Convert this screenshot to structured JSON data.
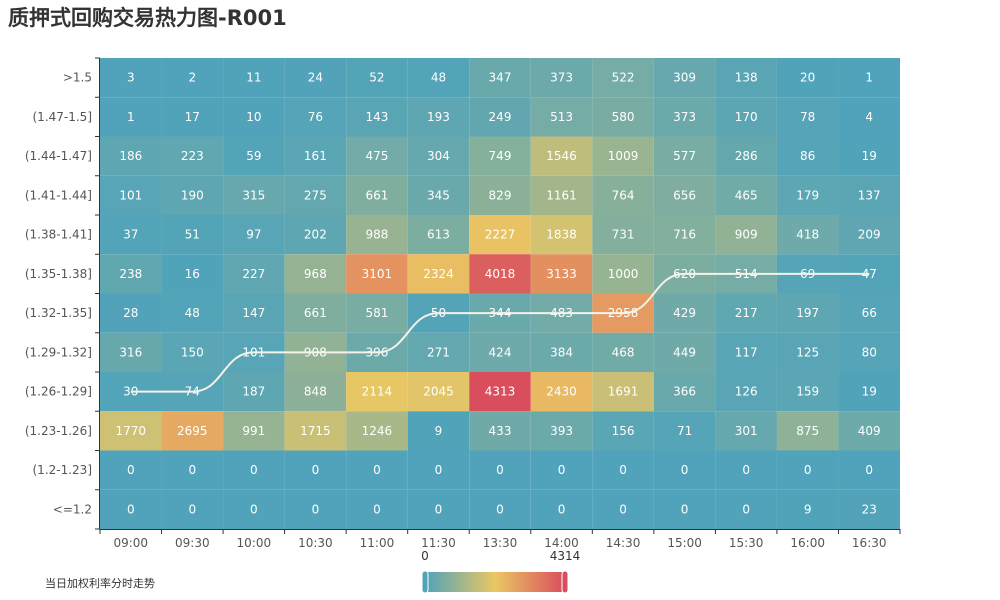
{
  "chart_data": {
    "type": "heatmap",
    "title": "质押式回购交易热力图-R001",
    "x_categories": [
      "09:00",
      "09:30",
      "10:00",
      "10:30",
      "11:00",
      "11:30",
      "13:30",
      "14:00",
      "14:30",
      "15:00",
      "15:30",
      "16:00",
      "16:30"
    ],
    "y_categories": [
      ">1.5",
      "(1.47-1.5]",
      "(1.44-1.47]",
      "(1.41-1.44]",
      "(1.38-1.41]",
      "(1.35-1.38]",
      "(1.32-1.35]",
      "(1.29-1.32]",
      "(1.26-1.29]",
      "(1.23-1.26]",
      "(1.2-1.23]",
      "<=1.2"
    ],
    "values": [
      [
        3,
        2,
        11,
        24,
        52,
        48,
        347,
        373,
        522,
        309,
        138,
        20,
        1
      ],
      [
        1,
        17,
        10,
        76,
        143,
        193,
        249,
        513,
        580,
        373,
        170,
        78,
        4
      ],
      [
        186,
        223,
        59,
        161,
        475,
        304,
        749,
        1546,
        1009,
        577,
        286,
        86,
        19
      ],
      [
        101,
        190,
        315,
        275,
        661,
        345,
        829,
        1161,
        764,
        656,
        465,
        179,
        137
      ],
      [
        37,
        51,
        97,
        202,
        988,
        613,
        2227,
        1838,
        731,
        716,
        909,
        418,
        209
      ],
      [
        238,
        16,
        227,
        968,
        3101,
        2324,
        4018,
        3133,
        1000,
        620,
        514,
        69,
        47
      ],
      [
        28,
        48,
        147,
        661,
        581,
        50,
        344,
        483,
        2958,
        429,
        217,
        197,
        66
      ],
      [
        316,
        150,
        101,
        908,
        396,
        271,
        424,
        384,
        468,
        449,
        117,
        125,
        80
      ],
      [
        30,
        74,
        187,
        848,
        2114,
        2045,
        4313,
        2430,
        1691,
        366,
        126,
        159,
        19
      ],
      [
        1770,
        2695,
        991,
        1715,
        1246,
        9,
        433,
        393,
        156,
        71,
        301,
        875,
        409
      ],
      [
        0,
        0,
        0,
        0,
        0,
        0,
        0,
        0,
        0,
        0,
        0,
        0,
        0
      ],
      [
        0,
        0,
        0,
        0,
        0,
        0,
        0,
        0,
        0,
        0,
        0,
        9,
        23
      ]
    ],
    "visual_map": {
      "min": 0,
      "max": 4314,
      "min_label": "0",
      "max_label": "4314",
      "colors": [
        "#50a3ba",
        "#eac763",
        "#d94e5d"
      ]
    },
    "trend_series": {
      "name": "当日加权利率分时走势",
      "y": [
        "(1.26-1.29]",
        "(1.26-1.29]",
        "(1.29-1.32]",
        "(1.29-1.32]",
        "(1.29-1.32]",
        "(1.32-1.35]",
        "(1.32-1.35]",
        "(1.32-1.35]",
        "(1.32-1.35]",
        "(1.35-1.38]",
        "(1.35-1.38]",
        "(1.35-1.38]",
        "(1.35-1.38]"
      ],
      "color": "#f5f2e8"
    }
  }
}
